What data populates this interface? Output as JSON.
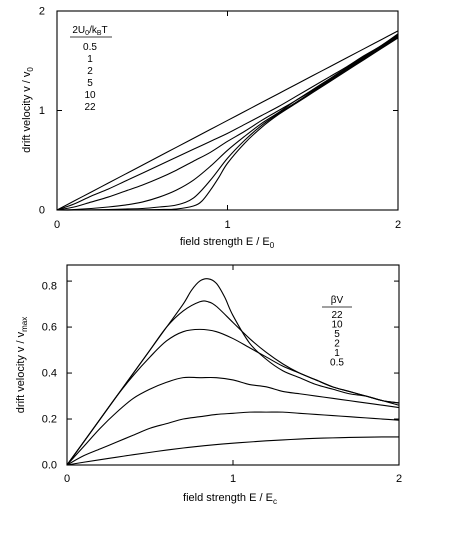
{
  "chart_data": [
    {
      "type": "line",
      "xlabel": "field strength  E / E",
      "xlabel_sub": "0",
      "ylabel": "drift velocity  v / v",
      "ylabel_sub": "0",
      "xlim": [
        0,
        2
      ],
      "ylim": [
        0,
        2
      ],
      "xticks": [
        0,
        1,
        2
      ],
      "yticks": [
        0,
        1,
        2
      ],
      "xtick_labels": [
        "0",
        "1",
        "2"
      ],
      "ytick_labels": [
        "0",
        "1",
        "2"
      ],
      "grid": false,
      "legend": {
        "placement": "top-left",
        "title_parts": [
          "2U",
          "0",
          "/k",
          "B",
          "T"
        ],
        "entries": [
          "0.5",
          "1",
          "2",
          "5",
          "10",
          "22"
        ]
      },
      "series": [
        {
          "param": 0.5,
          "x": [
            0,
            0.1,
            0.2,
            0.3,
            0.4,
            0.5,
            0.6,
            0.7,
            0.8,
            0.9,
            1.0,
            1.1,
            1.2,
            1.3,
            1.4,
            1.5,
            1.6,
            1.7,
            1.8,
            1.9,
            2.0
          ],
          "y": [
            0,
            0.09,
            0.18,
            0.27,
            0.36,
            0.45,
            0.54,
            0.63,
            0.72,
            0.81,
            0.9,
            0.99,
            1.08,
            1.17,
            1.26,
            1.35,
            1.44,
            1.53,
            1.62,
            1.71,
            1.8
          ]
        },
        {
          "param": 1,
          "x": [
            0,
            0.1,
            0.2,
            0.3,
            0.4,
            0.5,
            0.6,
            0.7,
            0.8,
            0.9,
            1.0,
            1.1,
            1.2,
            1.3,
            1.4,
            1.5,
            1.6,
            1.7,
            1.8,
            1.9,
            2.0
          ],
          "y": [
            0,
            0.06,
            0.14,
            0.21,
            0.29,
            0.37,
            0.45,
            0.53,
            0.61,
            0.69,
            0.77,
            0.86,
            0.95,
            1.04,
            1.14,
            1.24,
            1.34,
            1.44,
            1.55,
            1.65,
            1.77
          ]
        },
        {
          "param": 2,
          "x": [
            0,
            0.1,
            0.2,
            0.3,
            0.4,
            0.5,
            0.6,
            0.7,
            0.8,
            0.9,
            1.0,
            1.1,
            1.2,
            1.3,
            1.4,
            1.5,
            1.6,
            1.7,
            1.8,
            1.9,
            2.0
          ],
          "y": [
            0,
            0.03,
            0.08,
            0.13,
            0.19,
            0.25,
            0.32,
            0.4,
            0.49,
            0.58,
            0.69,
            0.79,
            0.9,
            1.0,
            1.1,
            1.21,
            1.32,
            1.43,
            1.54,
            1.65,
            1.76
          ]
        },
        {
          "param": 5,
          "x": [
            0,
            0.1,
            0.2,
            0.3,
            0.4,
            0.5,
            0.6,
            0.7,
            0.8,
            0.9,
            1.0,
            1.1,
            1.2,
            1.3,
            1.4,
            1.5,
            1.6,
            1.7,
            1.8,
            1.9,
            2.0
          ],
          "y": [
            0,
            0.005,
            0.015,
            0.03,
            0.05,
            0.08,
            0.13,
            0.2,
            0.3,
            0.44,
            0.6,
            0.74,
            0.87,
            0.98,
            1.1,
            1.2,
            1.31,
            1.42,
            1.53,
            1.64,
            1.75
          ]
        },
        {
          "param": 10,
          "x": [
            0,
            0.1,
            0.2,
            0.3,
            0.4,
            0.5,
            0.6,
            0.7,
            0.8,
            0.9,
            1.0,
            1.1,
            1.2,
            1.3,
            1.4,
            1.5,
            1.6,
            1.7,
            1.8,
            1.9,
            2.0
          ],
          "y": [
            0,
            0,
            0.002,
            0.005,
            0.01,
            0.015,
            0.03,
            0.05,
            0.12,
            0.3,
            0.52,
            0.7,
            0.85,
            0.97,
            1.08,
            1.19,
            1.3,
            1.41,
            1.52,
            1.63,
            1.74
          ]
        },
        {
          "param": 22,
          "x": [
            0,
            0.1,
            0.2,
            0.3,
            0.4,
            0.5,
            0.6,
            0.7,
            0.8,
            0.85,
            0.9,
            0.95,
            1.0,
            1.1,
            1.2,
            1.3,
            1.4,
            1.5,
            1.6,
            1.7,
            1.8,
            1.9,
            2.0
          ],
          "y": [
            0,
            0,
            0,
            0,
            0,
            0.002,
            0.005,
            0.01,
            0.04,
            0.09,
            0.2,
            0.33,
            0.47,
            0.67,
            0.83,
            0.96,
            1.07,
            1.18,
            1.29,
            1.4,
            1.51,
            1.62,
            1.73
          ]
        }
      ]
    },
    {
      "type": "line",
      "xlabel": "field strength  E / E",
      "xlabel_sub": "c",
      "ylabel": "drift velocity  v / v",
      "ylabel_sub": "max",
      "xlim": [
        0,
        2
      ],
      "ylim": [
        0,
        0.87
      ],
      "xticks": [
        0,
        1,
        2
      ],
      "yticks": [
        0,
        0.2,
        0.4,
        0.6,
        0.8
      ],
      "xtick_labels": [
        "0",
        "1",
        "2"
      ],
      "ytick_labels": [
        "0.0",
        "0.2",
        "0.4",
        "0.6",
        "0.8"
      ],
      "grid": false,
      "legend": {
        "placement": "top-right",
        "title": "βV",
        "entries": [
          "22",
          "10",
          "5",
          "2",
          "1",
          "0.5"
        ]
      },
      "series": [
        {
          "param": 22,
          "x": [
            0,
            0.1,
            0.2,
            0.3,
            0.4,
            0.5,
            0.6,
            0.7,
            0.75,
            0.8,
            0.85,
            0.9,
            0.95,
            1.0,
            1.1,
            1.2,
            1.3,
            1.4,
            1.5,
            1.6,
            1.7,
            1.8,
            1.9,
            2.0
          ],
          "y": [
            0,
            0.1,
            0.2,
            0.3,
            0.4,
            0.5,
            0.6,
            0.7,
            0.76,
            0.8,
            0.81,
            0.79,
            0.73,
            0.65,
            0.53,
            0.46,
            0.41,
            0.38,
            0.35,
            0.33,
            0.31,
            0.3,
            0.28,
            0.27
          ]
        },
        {
          "param": 10,
          "x": [
            0,
            0.1,
            0.2,
            0.3,
            0.4,
            0.5,
            0.6,
            0.7,
            0.8,
            0.85,
            0.9,
            1.0,
            1.1,
            1.2,
            1.3,
            1.4,
            1.5,
            1.6,
            1.7,
            1.8,
            1.9,
            2.0
          ],
          "y": [
            0,
            0.1,
            0.2,
            0.3,
            0.4,
            0.5,
            0.6,
            0.67,
            0.71,
            0.71,
            0.69,
            0.62,
            0.55,
            0.49,
            0.44,
            0.4,
            0.37,
            0.34,
            0.32,
            0.3,
            0.28,
            0.27
          ]
        },
        {
          "param": 5,
          "x": [
            0,
            0.1,
            0.2,
            0.3,
            0.4,
            0.5,
            0.6,
            0.7,
            0.8,
            0.9,
            1.0,
            1.1,
            1.2,
            1.3,
            1.4,
            1.5,
            1.6,
            1.7,
            1.8,
            1.9,
            2.0
          ],
          "y": [
            0,
            0.1,
            0.2,
            0.3,
            0.39,
            0.47,
            0.54,
            0.58,
            0.59,
            0.58,
            0.55,
            0.51,
            0.47,
            0.43,
            0.4,
            0.37,
            0.34,
            0.32,
            0.3,
            0.28,
            0.26
          ]
        },
        {
          "param": 2,
          "x": [
            0,
            0.1,
            0.2,
            0.3,
            0.4,
            0.5,
            0.6,
            0.7,
            0.8,
            0.9,
            1.0,
            1.1,
            1.2,
            1.3,
            1.4,
            1.5,
            1.6,
            1.7,
            1.8,
            1.9,
            2.0
          ],
          "y": [
            0,
            0.08,
            0.16,
            0.23,
            0.29,
            0.33,
            0.36,
            0.38,
            0.38,
            0.38,
            0.37,
            0.35,
            0.34,
            0.32,
            0.31,
            0.3,
            0.29,
            0.28,
            0.27,
            0.26,
            0.25
          ]
        },
        {
          "param": 1,
          "x": [
            0,
            0.1,
            0.2,
            0.3,
            0.4,
            0.5,
            0.6,
            0.7,
            0.8,
            0.9,
            1.0,
            1.1,
            1.2,
            1.3,
            1.4,
            1.5,
            1.6,
            1.7,
            1.8,
            1.9,
            2.0
          ],
          "y": [
            0,
            0.04,
            0.07,
            0.1,
            0.13,
            0.16,
            0.18,
            0.2,
            0.21,
            0.22,
            0.225,
            0.23,
            0.23,
            0.23,
            0.225,
            0.22,
            0.215,
            0.21,
            0.205,
            0.2,
            0.195
          ]
        },
        {
          "param": 0.5,
          "x": [
            0,
            0.1,
            0.2,
            0.3,
            0.4,
            0.5,
            0.6,
            0.7,
            0.8,
            0.9,
            1.0,
            1.1,
            1.2,
            1.3,
            1.4,
            1.5,
            1.6,
            1.7,
            1.8,
            1.9,
            2.0
          ],
          "y": [
            0,
            0.012,
            0.023,
            0.034,
            0.045,
            0.055,
            0.065,
            0.074,
            0.082,
            0.089,
            0.095,
            0.1,
            0.105,
            0.109,
            0.113,
            0.116,
            0.118,
            0.12,
            0.121,
            0.122,
            0.122
          ]
        }
      ]
    }
  ]
}
